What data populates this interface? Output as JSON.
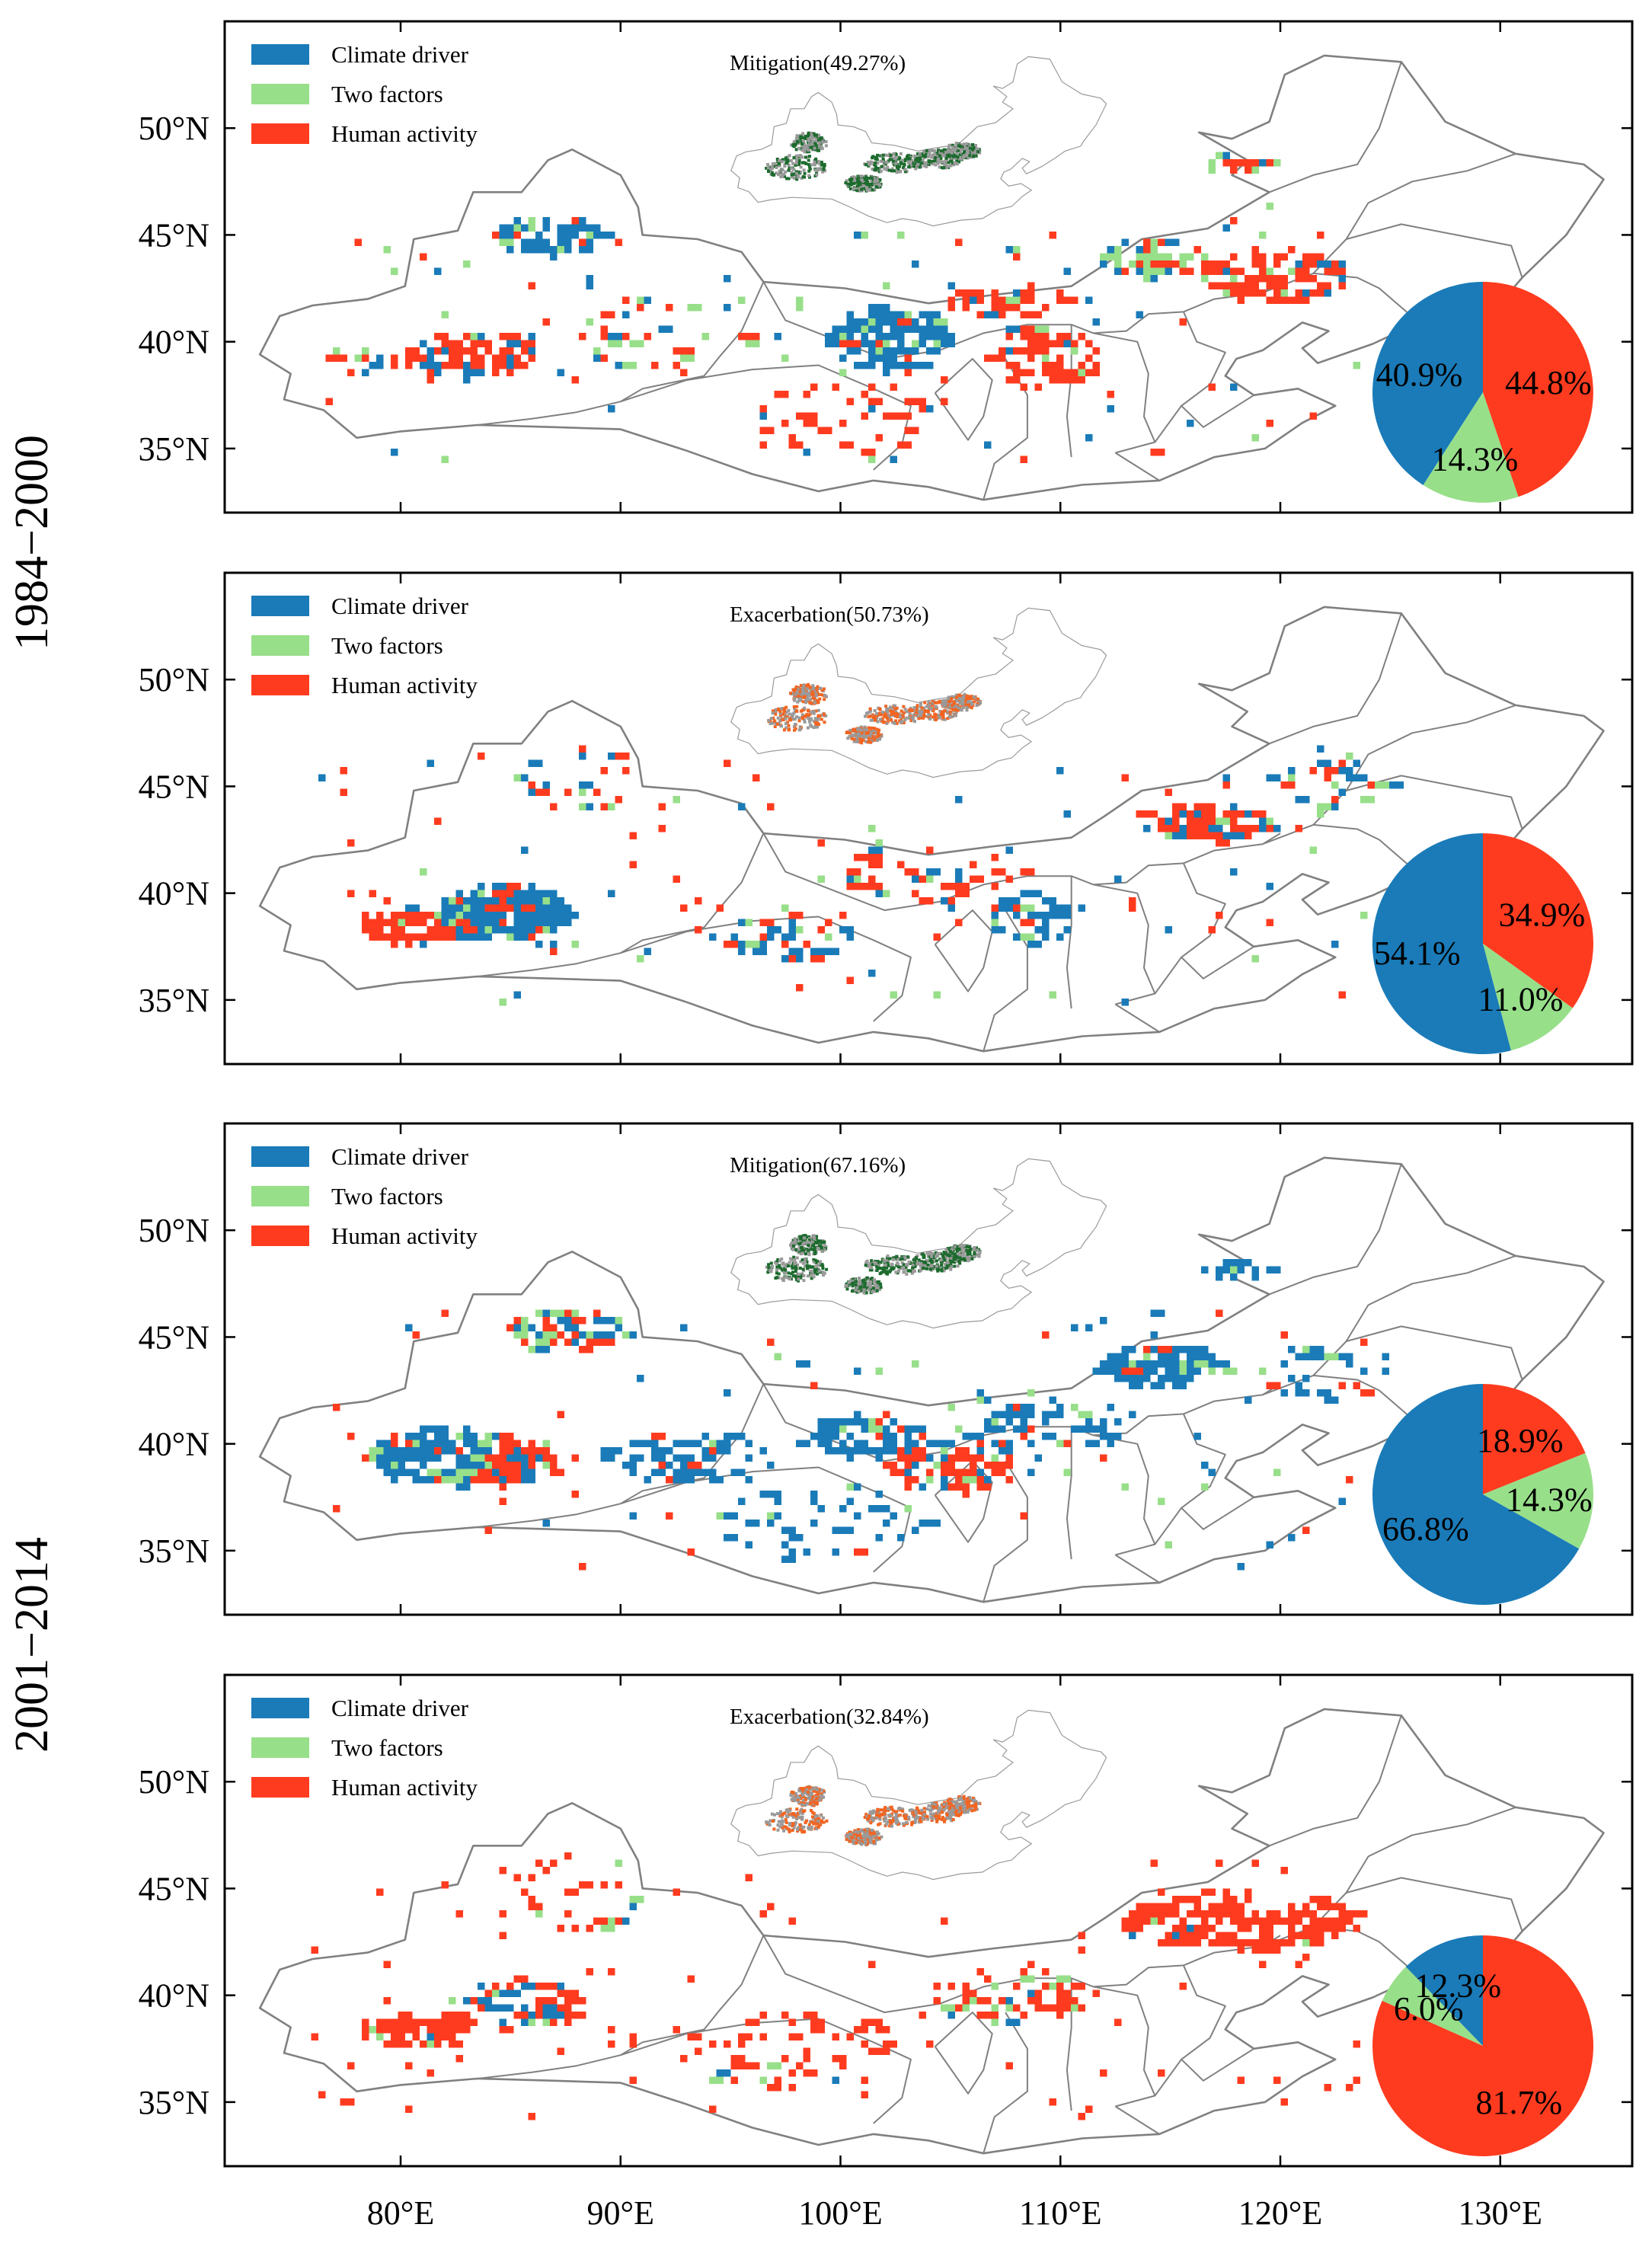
{
  "row_labels": [
    "1984−2000",
    "2001−2014"
  ],
  "legend": {
    "items": [
      {
        "label": "Climate driver",
        "color": "#1a7bb8"
      },
      {
        "label": "Two factors",
        "color": "#98df8a"
      },
      {
        "label": "Human activity",
        "color": "#ff3b1f"
      }
    ]
  },
  "x_ticks": [
    "80°E",
    "90°E",
    "100°E",
    "110°E",
    "120°E",
    "130°E"
  ],
  "x_tick_values": [
    80,
    90,
    100,
    110,
    120,
    130
  ],
  "y_ticks": [
    "35°N",
    "40°N",
    "45°N",
    "50°N"
  ],
  "y_tick_values": [
    35,
    40,
    45,
    50
  ],
  "lon_range": [
    72,
    136
  ],
  "lat_range": [
    32,
    55
  ],
  "colors": {
    "climate": "#1a7bb8",
    "two": "#98df8a",
    "human": "#ff3b1f",
    "boundary": "#808080",
    "inset_mitigation": "#1d6b2e",
    "inset_exacerbation": "#f26522",
    "inset_gray": "#9a9a9a"
  },
  "panels": [
    {
      "title": "Mitigation(49.27%)",
      "inset": "mitigation",
      "period": "1984−2000",
      "pie": [
        {
          "label": "40.9%",
          "value": 40.9,
          "cat": "climate"
        },
        {
          "label": "14.3%",
          "value": 14.3,
          "cat": "two"
        },
        {
          "label": "44.8%",
          "value": 44.8,
          "cat": "human"
        }
      ]
    },
    {
      "title": "Exacerbation(50.73%)",
      "inset": "exacerbation",
      "period": "1984−2000",
      "pie": [
        {
          "label": "54.1%",
          "value": 54.1,
          "cat": "climate"
        },
        {
          "label": "11.0%",
          "value": 11.0,
          "cat": "two"
        },
        {
          "label": "34.9%",
          "value": 34.9,
          "cat": "human"
        }
      ]
    },
    {
      "title": "Mitigation(67.16%)",
      "inset": "mitigation",
      "period": "2001−2014",
      "pie": [
        {
          "label": "66.8%",
          "value": 66.8,
          "cat": "climate"
        },
        {
          "label": "14.3%",
          "value": 14.3,
          "cat": "two"
        },
        {
          "label": "18.9%",
          "value": 18.9,
          "cat": "human"
        }
      ]
    },
    {
      "title": "Exacerbation(32.84%)",
      "inset": "exacerbation",
      "period": "2001−2014",
      "pie": [
        {
          "label": "12.3%",
          "value": 12.3,
          "cat": "climate"
        },
        {
          "label": "6.0%",
          "value": 6.0,
          "cat": "two"
        },
        {
          "label": "81.7%",
          "value": 81.7,
          "cat": "human"
        }
      ]
    }
  ]
}
